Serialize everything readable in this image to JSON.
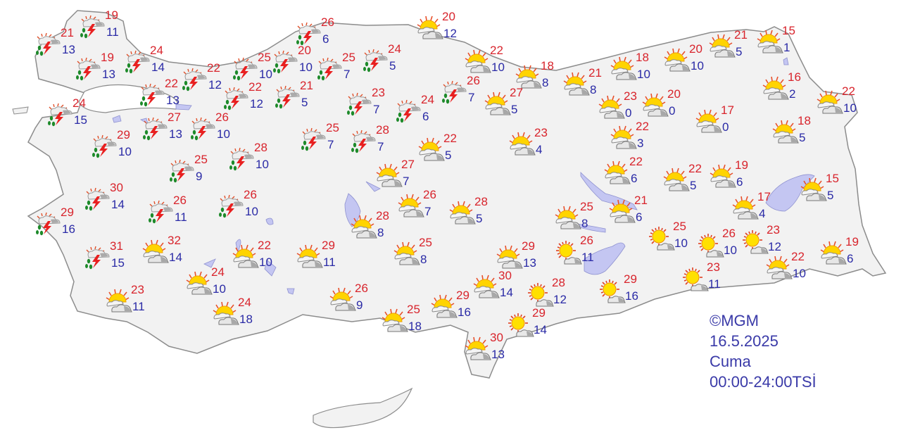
{
  "credit": {
    "copyright": "©MGM",
    "date": "16.5.2025",
    "day": "Cuma",
    "time_range": "00:00-24:00TSİ"
  },
  "colors": {
    "max_temp": "#d8242c",
    "min_temp": "#2a2aa6",
    "land": "#f2f2f2",
    "water": "#c4c6f2",
    "border": "#8c8c8c"
  },
  "legend_icons": {
    "storm": "partly-cloudy-thunderstorm-rain-icon",
    "partly_cloudy": "partly-cloudy-icon",
    "mostly_sunny": "mostly-sunny-icon"
  },
  "cities": [
    {
      "icon": "storm",
      "max": "21",
      "min": "13"
    },
    {
      "icon": "storm",
      "max": "19",
      "min": "11"
    },
    {
      "icon": "storm",
      "max": "19",
      "min": "13"
    },
    {
      "icon": "storm",
      "max": "24",
      "min": "14"
    },
    {
      "icon": "storm",
      "max": "24",
      "min": "15"
    },
    {
      "icon": "storm",
      "max": "22",
      "min": "13"
    },
    {
      "icon": "storm",
      "max": "22",
      "min": "12"
    },
    {
      "icon": "storm",
      "max": "29",
      "min": "10"
    },
    {
      "icon": "storm",
      "max": "27",
      "min": "13"
    },
    {
      "icon": "storm",
      "max": "26",
      "min": "10"
    },
    {
      "icon": "storm",
      "max": "22",
      "min": "12"
    },
    {
      "icon": "storm",
      "max": "25",
      "min": "10"
    },
    {
      "icon": "storm",
      "max": "28",
      "min": "10"
    },
    {
      "icon": "storm",
      "max": "25",
      "min": "9"
    },
    {
      "icon": "storm",
      "max": "30",
      "min": "14"
    },
    {
      "icon": "storm",
      "max": "26",
      "min": "11"
    },
    {
      "icon": "storm",
      "max": "26",
      "min": "10"
    },
    {
      "icon": "storm",
      "max": "29",
      "min": "16"
    },
    {
      "icon": "storm",
      "max": "31",
      "min": "15"
    },
    {
      "icon": "storm",
      "max": "26",
      "min": "6"
    },
    {
      "icon": "storm",
      "max": "20",
      "min": "10"
    },
    {
      "icon": "storm",
      "max": "25",
      "min": "7"
    },
    {
      "icon": "storm",
      "max": "24",
      "min": "5"
    },
    {
      "icon": "storm",
      "max": "21",
      "min": "5"
    },
    {
      "icon": "storm",
      "max": "23",
      "min": "7"
    },
    {
      "icon": "storm",
      "max": "24",
      "min": "6"
    },
    {
      "icon": "storm",
      "max": "26",
      "min": "7"
    },
    {
      "icon": "storm",
      "max": "25",
      "min": "7"
    },
    {
      "icon": "storm",
      "max": "28",
      "min": "7"
    },
    {
      "icon": "partly_cloudy",
      "max": "20",
      "min": "12"
    },
    {
      "icon": "partly_cloudy",
      "max": "22",
      "min": "10"
    },
    {
      "icon": "partly_cloudy",
      "max": "18",
      "min": "8"
    },
    {
      "icon": "partly_cloudy",
      "max": "21",
      "min": "8"
    },
    {
      "icon": "partly_cloudy",
      "max": "27",
      "min": "5"
    },
    {
      "icon": "partly_cloudy",
      "max": "23",
      "min": "4"
    },
    {
      "icon": "partly_cloudy",
      "max": "22",
      "min": "5"
    },
    {
      "icon": "partly_cloudy",
      "max": "27",
      "min": "7"
    },
    {
      "icon": "partly_cloudy",
      "max": "26",
      "min": "7"
    },
    {
      "icon": "partly_cloudy",
      "max": "28",
      "min": "5"
    },
    {
      "icon": "partly_cloudy",
      "max": "28",
      "min": "8"
    },
    {
      "icon": "partly_cloudy",
      "max": "25",
      "min": "8"
    },
    {
      "icon": "partly_cloudy",
      "max": "29",
      "min": "11"
    },
    {
      "icon": "partly_cloudy",
      "max": "22",
      "min": "10"
    },
    {
      "icon": "partly_cloudy",
      "max": "32",
      "min": "14"
    },
    {
      "icon": "partly_cloudy",
      "max": "24",
      "min": "10"
    },
    {
      "icon": "partly_cloudy",
      "max": "23",
      "min": "11"
    },
    {
      "icon": "partly_cloudy",
      "max": "24",
      "min": "18"
    },
    {
      "icon": "partly_cloudy",
      "max": "26",
      "min": "9"
    },
    {
      "icon": "partly_cloudy",
      "max": "25",
      "min": "18"
    },
    {
      "icon": "partly_cloudy",
      "max": "29",
      "min": "16"
    },
    {
      "icon": "partly_cloudy",
      "max": "29",
      "min": "13"
    },
    {
      "icon": "partly_cloudy",
      "max": "30",
      "min": "14"
    },
    {
      "icon": "partly_cloudy",
      "max": "30",
      "min": "13"
    },
    {
      "icon": "partly_cloudy",
      "max": "25",
      "min": "8"
    },
    {
      "icon": "partly_cloudy",
      "max": "18",
      "min": "10"
    },
    {
      "icon": "partly_cloudy",
      "max": "20",
      "min": "10"
    },
    {
      "icon": "partly_cloudy",
      "max": "21",
      "min": "5"
    },
    {
      "icon": "partly_cloudy",
      "max": "15",
      "min": "1"
    },
    {
      "icon": "partly_cloudy",
      "max": "23",
      "min": "0"
    },
    {
      "icon": "partly_cloudy",
      "max": "20",
      "min": "0"
    },
    {
      "icon": "partly_cloudy",
      "max": "22",
      "min": "3"
    },
    {
      "icon": "partly_cloudy",
      "max": "17",
      "min": "0"
    },
    {
      "icon": "partly_cloudy",
      "max": "16",
      "min": "2"
    },
    {
      "icon": "partly_cloudy",
      "max": "22",
      "min": "10"
    },
    {
      "icon": "partly_cloudy",
      "max": "18",
      "min": "5"
    },
    {
      "icon": "partly_cloudy",
      "max": "22",
      "min": "6"
    },
    {
      "icon": "partly_cloudy",
      "max": "22",
      "min": "5"
    },
    {
      "icon": "partly_cloudy",
      "max": "19",
      "min": "6"
    },
    {
      "icon": "partly_cloudy",
      "max": "21",
      "min": "6"
    },
    {
      "icon": "partly_cloudy",
      "max": "17",
      "min": "4"
    },
    {
      "icon": "partly_cloudy",
      "max": "15",
      "min": "5"
    },
    {
      "icon": "partly_cloudy",
      "max": "19",
      "min": "6"
    },
    {
      "icon": "partly_cloudy",
      "max": "22",
      "min": "10"
    },
    {
      "icon": "mostly_sunny",
      "max": "26",
      "min": "11"
    },
    {
      "icon": "mostly_sunny",
      "max": "25",
      "min": "10"
    },
    {
      "icon": "mostly_sunny",
      "max": "26",
      "min": "10"
    },
    {
      "icon": "mostly_sunny",
      "max": "23",
      "min": "12"
    },
    {
      "icon": "mostly_sunny",
      "max": "23",
      "min": "11"
    },
    {
      "icon": "mostly_sunny",
      "max": "28",
      "min": "12"
    },
    {
      "icon": "mostly_sunny",
      "max": "29",
      "min": "16"
    },
    {
      "icon": "mostly_sunny",
      "max": "29",
      "min": "14"
    }
  ]
}
